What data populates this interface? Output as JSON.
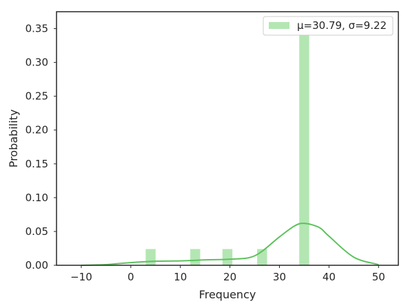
{
  "chart_data": {
    "type": "bar",
    "title": "",
    "xlabel": "Frequency",
    "ylabel": "Probability",
    "xlim": [
      -15,
      54
    ],
    "ylim": [
      0,
      0.375
    ],
    "xticks": [
      -10,
      0,
      10,
      20,
      30,
      40,
      50
    ],
    "xtick_labels": [
      "−10",
      "0",
      "10",
      "20",
      "30",
      "40",
      "50"
    ],
    "yticks": [
      0.0,
      0.05,
      0.1,
      0.15,
      0.2,
      0.25,
      0.3,
      0.35
    ],
    "ytick_labels": [
      "0.00",
      "0.05",
      "0.10",
      "0.15",
      "0.20",
      "0.25",
      "0.30",
      "0.35"
    ],
    "grid": false,
    "legend_position": "top-right",
    "legend": [
      "μ=30.79, σ=9.22"
    ],
    "bars": [
      {
        "x0": 3.0,
        "x1": 5.0,
        "value": 0.024
      },
      {
        "x0": 12.0,
        "x1": 14.0,
        "value": 0.024
      },
      {
        "x0": 18.5,
        "x1": 20.5,
        "value": 0.024
      },
      {
        "x0": 25.5,
        "x1": 27.5,
        "value": 0.024
      },
      {
        "x0": 34.0,
        "x1": 36.0,
        "value": 0.35
      }
    ],
    "kde": {
      "x": [
        -10,
        -5,
        0,
        5,
        10,
        15,
        20,
        25,
        30,
        33,
        35,
        38,
        40,
        45,
        50
      ],
      "y": [
        0.0,
        0.001,
        0.004,
        0.006,
        0.0065,
        0.008,
        0.009,
        0.014,
        0.042,
        0.058,
        0.062,
        0.056,
        0.043,
        0.012,
        0.001
      ]
    },
    "colors": {
      "bar": "#b3e6b3",
      "kde": "#5cc25c",
      "axes": "#262626"
    }
  }
}
